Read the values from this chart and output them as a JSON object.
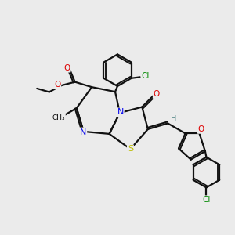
{
  "background_color": "#ebebeb",
  "atom_colors": {
    "C": "#000000",
    "N": "#0000ee",
    "O": "#dd0000",
    "S": "#bbbb00",
    "Cl": "#008800",
    "H": "#558888"
  },
  "bond_color": "#111111",
  "bond_width": 1.6,
  "xlim": [
    0,
    10
  ],
  "ylim": [
    0,
    10
  ]
}
